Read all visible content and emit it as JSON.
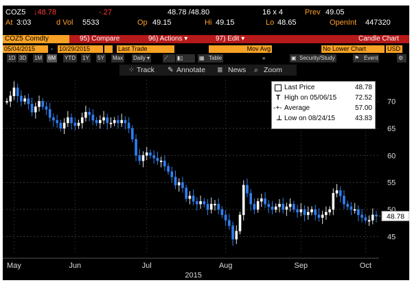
{
  "quote": {
    "ticker": "COZ5",
    "last": "↓48.78",
    "change": "-.27",
    "bid_ask": "48.78 /48.80",
    "size": "16 x 4",
    "prev_label": "Prev",
    "prev": "49.05",
    "time_label": "At",
    "time": "3:03",
    "dvol_label": "d Vol",
    "dvol": "5533",
    "open_label": "Op",
    "open": "49.15",
    "high_label": "Hi",
    "high": "49.15",
    "low_label": "Lo",
    "low": "48.65",
    "oi_label": "OpenInt",
    "oi": "447320"
  },
  "menubar": {
    "security": "COZ5 Comdty",
    "compare": "95) Compare",
    "actions": "96) Actions ▾",
    "edit": "97) Edit ▾",
    "title": "Candle Chart"
  },
  "controls": {
    "start_date": "05/04/2015",
    "end_date": "10/29/2015",
    "field": "Last Trade",
    "study": "Mov Avg",
    "lower_chart": "No Lower Chart",
    "currency": "USD"
  },
  "toolbar": {
    "periods": [
      "1D",
      "3D",
      "1M",
      "6M",
      "YTD",
      "1Y",
      "5Y",
      "Max"
    ],
    "active_period": "6M",
    "frequency": "Daily ▾",
    "table": "Table",
    "collapse": "«",
    "security_study": "Security/Study",
    "event": "Event"
  },
  "tools": {
    "track": "Track",
    "annotate": "Annotate",
    "news": "News",
    "zoom": "Zoom"
  },
  "legend": {
    "last_price_label": "Last Price",
    "last_price": "48.78",
    "high_label": "High on 05/06/15",
    "high": "72.52",
    "average_label": "Average",
    "average": "57.00",
    "low_label": "Low on 08/24/15",
    "low": "43.83"
  },
  "colors": {
    "background": "#000000",
    "up_candle": "#ffffff",
    "down_candle": "#2f7ff0",
    "accent": "#f7a125",
    "header_red": "#b71a1a"
  },
  "chart_data": {
    "type": "candlestick",
    "x_ticks": [
      "May",
      "Jun",
      "Jul",
      "Aug",
      "Sep",
      "Oct"
    ],
    "x_year": "2015",
    "y_ticks": [
      45,
      50,
      55,
      60,
      65,
      70
    ],
    "ylim": [
      42,
      74
    ],
    "last_value_label": "48.78",
    "series_points": [
      [
        0,
        70
      ],
      [
        1,
        71
      ],
      [
        2,
        72.5
      ],
      [
        3,
        71
      ],
      [
        4,
        70
      ],
      [
        5,
        70.5
      ],
      [
        6,
        69.5
      ],
      [
        7,
        68
      ],
      [
        8,
        69
      ],
      [
        9,
        70
      ],
      [
        10,
        69
      ],
      [
        11,
        68.5
      ],
      [
        12,
        67
      ],
      [
        13,
        66.5
      ],
      [
        14,
        66
      ],
      [
        15,
        65
      ],
      [
        16,
        66
      ],
      [
        17,
        67
      ],
      [
        18,
        66
      ],
      [
        19,
        65.5
      ],
      [
        20,
        66
      ],
      [
        21,
        67
      ],
      [
        22,
        68
      ],
      [
        23,
        67.5
      ],
      [
        24,
        66.5
      ],
      [
        25,
        66
      ],
      [
        26,
        66.5
      ],
      [
        27,
        67
      ],
      [
        28,
        66
      ],
      [
        29,
        66
      ],
      [
        30,
        66.5
      ],
      [
        31,
        66
      ],
      [
        32,
        66.5
      ],
      [
        33,
        66
      ],
      [
        34,
        65
      ],
      [
        35,
        63
      ],
      [
        36,
        60
      ],
      [
        37,
        59
      ],
      [
        38,
        60
      ],
      [
        39,
        60.5
      ],
      [
        40,
        60
      ],
      [
        41,
        59.5
      ],
      [
        42,
        59
      ],
      [
        43,
        59
      ],
      [
        44,
        58
      ],
      [
        45,
        57
      ],
      [
        46,
        56
      ],
      [
        47,
        54.5
      ],
      [
        48,
        55
      ],
      [
        49,
        54
      ],
      [
        50,
        52
      ],
      [
        51,
        52.5
      ],
      [
        52,
        51.5
      ],
      [
        53,
        51
      ],
      [
        54,
        51.5
      ],
      [
        55,
        51
      ],
      [
        56,
        50
      ],
      [
        57,
        51
      ],
      [
        58,
        51
      ],
      [
        59,
        50
      ],
      [
        60,
        49
      ],
      [
        61,
        48
      ],
      [
        62,
        47
      ],
      [
        63,
        44.5
      ],
      [
        64,
        46
      ],
      [
        65,
        49
      ],
      [
        66,
        54.5
      ],
      [
        67,
        53
      ],
      [
        68,
        51
      ],
      [
        69,
        50
      ],
      [
        70,
        51.5
      ],
      [
        71,
        52
      ],
      [
        72,
        51
      ],
      [
        73,
        50.5
      ],
      [
        74,
        50
      ],
      [
        75,
        50.5
      ],
      [
        76,
        51
      ],
      [
        77,
        50
      ],
      [
        78,
        50.5
      ],
      [
        79,
        51
      ],
      [
        80,
        50
      ],
      [
        81,
        49.5
      ],
      [
        82,
        50
      ],
      [
        83,
        49
      ],
      [
        84,
        49.5
      ],
      [
        85,
        50
      ],
      [
        86,
        49
      ],
      [
        87,
        48.5
      ],
      [
        88,
        49
      ],
      [
        89,
        49.5
      ],
      [
        90,
        50
      ],
      [
        91,
        53
      ],
      [
        92,
        53.5
      ],
      [
        93,
        52.5
      ],
      [
        94,
        51
      ],
      [
        95,
        50.5
      ],
      [
        96,
        50
      ],
      [
        97,
        50
      ],
      [
        98,
        49
      ],
      [
        99,
        48.5
      ],
      [
        100,
        48
      ],
      [
        101,
        48
      ],
      [
        102,
        49
      ],
      [
        103,
        48.78
      ]
    ]
  }
}
